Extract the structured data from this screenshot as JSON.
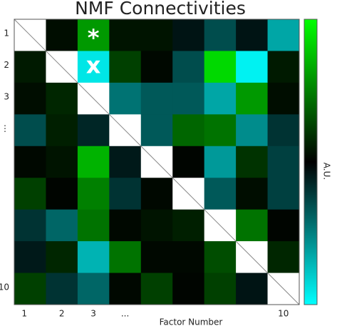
{
  "chart_data": {
    "type": "heatmap",
    "title": "NMF Connectivities",
    "x_label": "Factor Number",
    "colorbar_label": "A.U.",
    "x_categories": [
      "1",
      "2",
      "3",
      "...",
      null,
      null,
      null,
      null,
      "10"
    ],
    "y_categories": [
      "1",
      "2",
      "3",
      "⋮",
      null,
      null,
      null,
      null,
      "10"
    ],
    "values": [
      [
        null,
        0.05,
        0.6,
        0.08,
        0.08,
        -0.08,
        -0.3,
        -0.08,
        -0.65
      ],
      [
        0.1,
        null,
        -0.9,
        0.25,
        0.03,
        -0.3,
        0.85,
        -0.95,
        0.1
      ],
      [
        0.05,
        0.15,
        null,
        -0.45,
        -0.35,
        -0.35,
        -0.65,
        0.6,
        0.05
      ],
      [
        -0.3,
        0.12,
        -0.15,
        null,
        -0.35,
        0.4,
        0.45,
        -0.55,
        -0.2
      ],
      [
        0.03,
        0.08,
        0.7,
        -0.1,
        null,
        0.02,
        -0.6,
        0.2,
        -0.25
      ],
      [
        0.25,
        0.02,
        0.5,
        -0.2,
        0.03,
        null,
        -0.35,
        0.05,
        -0.25
      ],
      [
        -0.2,
        -0.4,
        0.45,
        0.03,
        0.08,
        0.12,
        null,
        0.45,
        0.02
      ],
      [
        -0.1,
        0.15,
        -0.7,
        0.45,
        0.03,
        0.03,
        0.3,
        null,
        0.15
      ],
      [
        0.25,
        -0.2,
        -0.4,
        0.03,
        0.25,
        0.02,
        0.25,
        -0.08,
        null
      ]
    ],
    "zlim": [
      -1,
      1
    ],
    "annotations": [
      {
        "text": "*",
        "row": 0,
        "col": 2
      },
      {
        "text": "x",
        "row": 1,
        "col": 2
      }
    ]
  }
}
